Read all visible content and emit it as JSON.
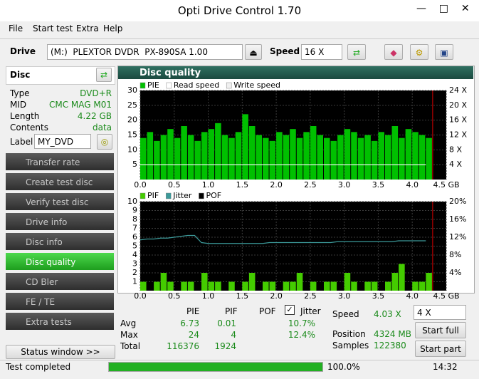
{
  "window": {
    "title": "Opti Drive Control 1.70"
  },
  "menu": [
    "File",
    "Start test",
    "Extra",
    "Help"
  ],
  "toolbar": {
    "drive_label": "Drive",
    "drive": "(M:)  PLEXTOR DVDR  PX-890SA 1.00",
    "speed_label": "Speed",
    "speed": "16 X"
  },
  "disc": {
    "title": "Disc",
    "rows": [
      [
        "Type",
        "DVD+R"
      ],
      [
        "MID",
        "CMC MAG M01"
      ],
      [
        "Length",
        "4.22 GB"
      ],
      [
        "Contents",
        "data"
      ]
    ],
    "label_key": "Label",
    "label_value": "MY_DVD"
  },
  "nav": [
    "Transfer rate",
    "Create test disc",
    "Verify test disc",
    "Drive info",
    "Disc info",
    "Disc quality",
    "CD Bler",
    "FE / TE",
    "Extra tests"
  ],
  "status_button": "Status window >>",
  "panel_title": "Disc quality",
  "chart_data": [
    {
      "type": "bar",
      "x": [
        0,
        0.1,
        0.2,
        0.3,
        0.4,
        0.5,
        0.6,
        0.7,
        0.8,
        0.9,
        1,
        1.1,
        1.2,
        1.3,
        1.4,
        1.5,
        1.6,
        1.7,
        1.8,
        1.9,
        2,
        2.1,
        2.2,
        2.3,
        2.4,
        2.5,
        2.6,
        2.7,
        2.8,
        2.9,
        3,
        3.1,
        3.2,
        3.3,
        3.4,
        3.5,
        3.6,
        3.7,
        3.8,
        3.9,
        4,
        4.1,
        4.2
      ],
      "series": [
        {
          "name": "PIE",
          "color": "#00c000",
          "type": "bar",
          "values": [
            14,
            16,
            13,
            15,
            17,
            14,
            18,
            15,
            13,
            16,
            17,
            19,
            15,
            14,
            16,
            22,
            18,
            15,
            14,
            13,
            16,
            15,
            17,
            14,
            16,
            18,
            15,
            14,
            13,
            15,
            17,
            16,
            14,
            15,
            13,
            16,
            15,
            18,
            14,
            17,
            16,
            15,
            14
          ]
        },
        {
          "name": "Read speed",
          "color": "#ffffff",
          "type": "line",
          "axis": "y2",
          "values": [
            4,
            4,
            4,
            4,
            4,
            4,
            4,
            4,
            4,
            4,
            4,
            4,
            4,
            4,
            4,
            4,
            4,
            4,
            4,
            4,
            4,
            4,
            4,
            4,
            4,
            4,
            4,
            4,
            4,
            4,
            4,
            4,
            4,
            4,
            4,
            4,
            4,
            4,
            4,
            4,
            4,
            4,
            4
          ]
        },
        {
          "name": "Write speed",
          "color": "#f0f0f0",
          "type": "line",
          "axis": "y2",
          "values": [
            null,
            null,
            null,
            null,
            null,
            null,
            null,
            null,
            null,
            null,
            null,
            null,
            null,
            null,
            null,
            null,
            null,
            null,
            null,
            null,
            null,
            null,
            null,
            null,
            null,
            null,
            null,
            null,
            null,
            null,
            null,
            null,
            null,
            null,
            null,
            null,
            null,
            null,
            null,
            null,
            null,
            null,
            null
          ]
        }
      ],
      "xlim": [
        0,
        4.5
      ],
      "xticks": [
        {
          "value": 0,
          "label": "0.0"
        },
        0.5,
        {
          "value": 1,
          "label": "1.0"
        },
        1.5,
        {
          "value": 2,
          "label": "2.0"
        },
        2.5,
        {
          "value": 3,
          "label": "3.0"
        },
        3.5,
        {
          "value": 4,
          "label": "4.0"
        },
        {
          "value": 4.5,
          "label": "4.5 GB"
        }
      ],
      "ylim": [
        0,
        30
      ],
      "yticks": [
        5,
        10,
        15,
        20,
        25,
        30
      ],
      "y2lim": [
        0,
        24
      ],
      "y2ticks": [
        {
          "value": 4,
          "label": "4 X"
        },
        {
          "value": 8,
          "label": "8 X"
        },
        {
          "value": 12,
          "label": "12 X"
        },
        {
          "value": 16,
          "label": "16 X"
        },
        {
          "value": 20,
          "label": "20 X"
        },
        {
          "value": 24,
          "label": "24 X"
        }
      ],
      "grid": true
    },
    {
      "type": "bar",
      "x": [
        0,
        0.1,
        0.2,
        0.3,
        0.4,
        0.5,
        0.6,
        0.7,
        0.8,
        0.9,
        1,
        1.1,
        1.2,
        1.3,
        1.4,
        1.5,
        1.6,
        1.7,
        1.8,
        1.9,
        2,
        2.1,
        2.2,
        2.3,
        2.4,
        2.5,
        2.6,
        2.7,
        2.8,
        2.9,
        3,
        3.1,
        3.2,
        3.3,
        3.4,
        3.5,
        3.6,
        3.7,
        3.8,
        3.9,
        4,
        4.1,
        4.2
      ],
      "series": [
        {
          "name": "PIF",
          "color": "#44cc00",
          "type": "bar",
          "values": [
            1,
            0,
            1,
            2,
            1,
            0,
            1,
            1,
            0,
            2,
            1,
            1,
            0,
            1,
            0,
            1,
            2,
            0,
            1,
            1,
            0,
            1,
            1,
            2,
            0,
            1,
            0,
            1,
            1,
            0,
            2,
            1,
            0,
            1,
            1,
            0,
            1,
            2,
            3,
            0,
            1,
            1,
            2
          ]
        },
        {
          "name": "Jitter",
          "color": "#3c9a9a",
          "type": "line",
          "axis": "y2",
          "values": [
            11.4,
            11.6,
            11.6,
            11.8,
            11.8,
            12,
            12.2,
            12.4,
            12.4,
            10.8,
            10.6,
            10.6,
            10.6,
            10.6,
            10.6,
            10.6,
            10.6,
            10.6,
            10.6,
            10.8,
            10.8,
            10.8,
            10.8,
            10.8,
            10.8,
            10.8,
            10.8,
            10.8,
            10.8,
            11,
            11,
            11,
            11,
            11,
            11,
            11,
            11,
            11,
            11.2,
            11.2,
            11.2,
            11.2,
            11.2
          ]
        },
        {
          "name": "POF",
          "color": "#000000",
          "type": "line",
          "values": [
            null,
            null,
            null,
            null,
            null,
            null,
            null,
            null,
            null,
            null,
            null,
            null,
            null,
            null,
            null,
            null,
            null,
            null,
            null,
            null,
            null,
            null,
            null,
            null,
            null,
            null,
            null,
            null,
            null,
            null,
            null,
            null,
            null,
            null,
            null,
            null,
            null,
            null,
            null,
            null,
            null,
            null,
            null
          ]
        }
      ],
      "xlim": [
        0,
        4.5
      ],
      "xticks": [
        {
          "value": 0,
          "label": "0.0"
        },
        0.5,
        {
          "value": 1,
          "label": "1.0"
        },
        1.5,
        {
          "value": 2,
          "label": "2.0"
        },
        2.5,
        {
          "value": 3,
          "label": "3.0"
        },
        3.5,
        {
          "value": 4,
          "label": "4.0"
        },
        {
          "value": 4.5,
          "label": "4.5 GB"
        }
      ],
      "ylim": [
        0,
        10
      ],
      "yticks": [
        1,
        2,
        3,
        4,
        5,
        6,
        7,
        8,
        9,
        10
      ],
      "y2lim": [
        0,
        20
      ],
      "y2ticks": [
        {
          "value": 4,
          "label": "4%"
        },
        {
          "value": 8,
          "label": "8%"
        },
        {
          "value": 12,
          "label": "12%"
        },
        {
          "value": 16,
          "label": "16%"
        },
        {
          "value": 20,
          "label": "20%"
        }
      ],
      "grid": true
    }
  ],
  "stats": {
    "headers": [
      "PIE",
      "PIF",
      "POF",
      "Jitter"
    ],
    "avg": {
      "label": "Avg",
      "pie": "6.73",
      "pif": "0.01",
      "jitter": "10.7%"
    },
    "max": {
      "label": "Max",
      "pie": "24",
      "pif": "4",
      "jitter": "12.4%"
    },
    "total": {
      "label": "Total",
      "pie": "116376",
      "pif": "1924"
    }
  },
  "info": {
    "speed": [
      "Speed",
      "4.03 X"
    ],
    "position": [
      "Position",
      "4324 MB"
    ],
    "samples": [
      "Samples",
      "122380"
    ]
  },
  "controls": {
    "speed": "4 X",
    "start_full": "Start full",
    "start_part": "Start part"
  },
  "status": {
    "text": "Test completed",
    "progress": "100.0%",
    "time": "14:32"
  }
}
